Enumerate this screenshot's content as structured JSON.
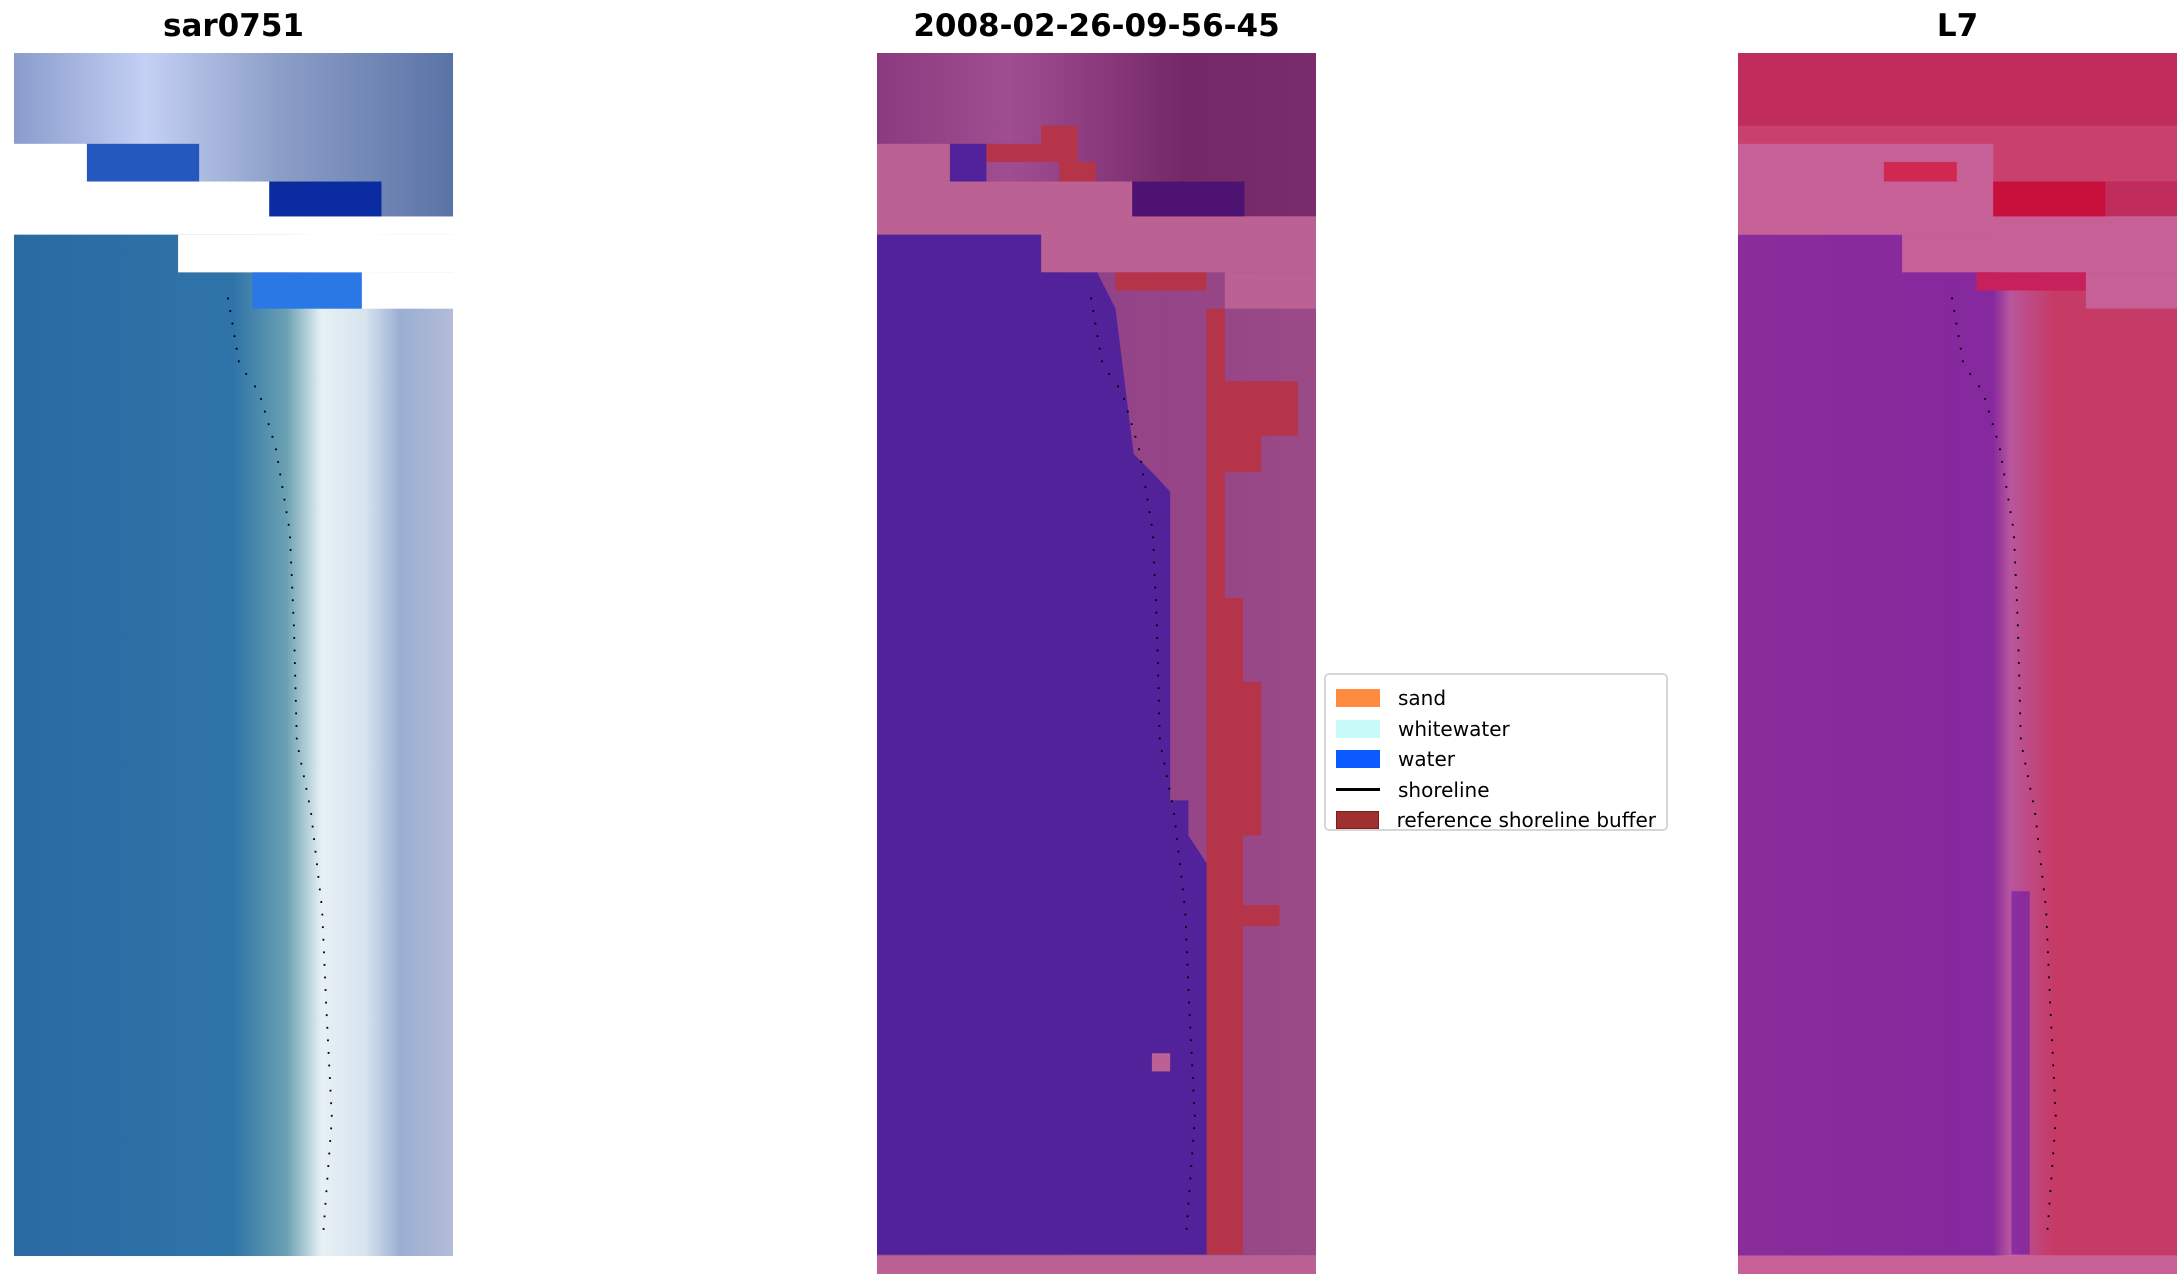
{
  "chart_data": [
    {
      "type": "image",
      "title": "sar0751",
      "description_kind": "RGB satellite image with detected shoreline"
    },
    {
      "type": "image",
      "title": "2008-02-26-09-56-45",
      "description_kind": "classified image with shoreline"
    },
    {
      "type": "image",
      "title": "L7",
      "description_kind": "MNDWI image with shoreline"
    }
  ],
  "legend": {
    "placement": "center",
    "items": [
      {
        "label": "sand",
        "color": "#ff8c3e",
        "kind": "patch"
      },
      {
        "label": "whitewater",
        "color": "#c8fafa",
        "kind": "patch"
      },
      {
        "label": "water",
        "color": "#0a5aff",
        "kind": "patch"
      },
      {
        "label": "shoreline",
        "color": "#000000",
        "kind": "line"
      },
      {
        "label": "reference shoreline buffer",
        "color": "#a0302f",
        "kind": "patch"
      }
    ]
  }
}
